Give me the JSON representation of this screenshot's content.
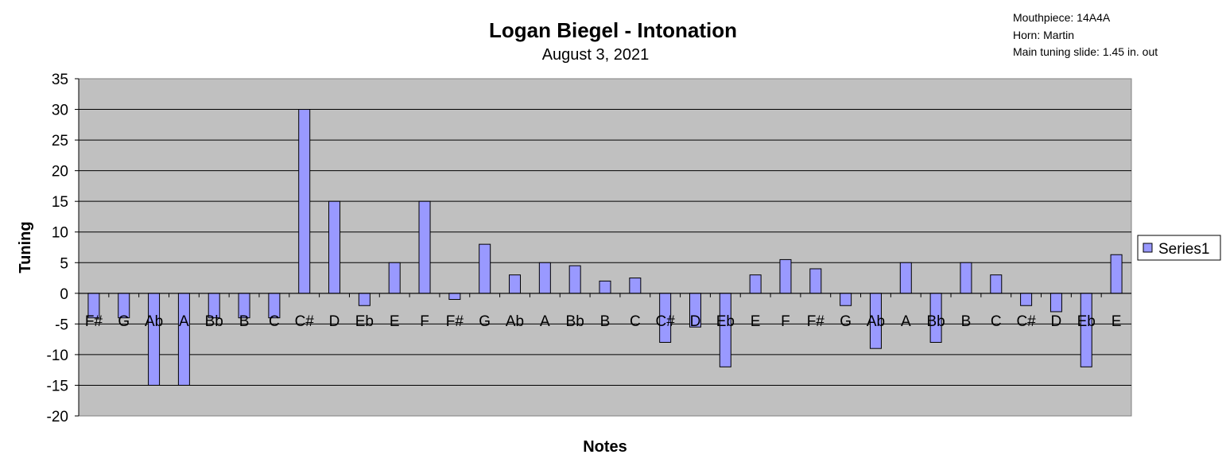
{
  "chart_data": {
    "type": "bar",
    "title": "Logan Biegel - Intonation",
    "subtitle": "August 3, 2021",
    "xlabel": "Notes",
    "ylabel": "Tuning",
    "ylim": [
      -20,
      35
    ],
    "yticks": [
      35,
      30,
      25,
      20,
      15,
      10,
      5,
      0,
      -5,
      -10,
      -15,
      -20
    ],
    "grid": true,
    "legend_position": "right",
    "categories": [
      "F#",
      "G",
      "Ab",
      "A",
      "Bb",
      "B",
      "C",
      "C#",
      "D",
      "Eb",
      "E",
      "F",
      "F#",
      "G",
      "Ab",
      "A",
      "Bb",
      "B",
      "C",
      "C#",
      "D",
      "Eb",
      "E",
      "F",
      "F#",
      "G",
      "Ab",
      "A",
      "Bb",
      "B",
      "C",
      "C#",
      "D",
      "Eb",
      "E"
    ],
    "series": [
      {
        "name": "Series1",
        "color": "#9999ff",
        "values": [
          -4,
          -4,
          -15,
          -15,
          -4,
          -4,
          -4,
          30,
          15,
          -2,
          5,
          15,
          -1,
          8,
          3,
          5,
          4.5,
          2,
          2.5,
          -8,
          -5.5,
          -12,
          3,
          5.5,
          4,
          -2,
          -9,
          5,
          -8,
          5,
          3,
          -2,
          -3,
          -12,
          6.3
        ]
      }
    ],
    "annotations": [
      "Mouthpiece:  14A4A",
      "Horn:  Martin",
      "Main tuning slide:  1.45 in. out"
    ]
  },
  "colors": {
    "plot_bg": "#c0c0c0",
    "bar": "#9999ff",
    "border": "#000000"
  }
}
